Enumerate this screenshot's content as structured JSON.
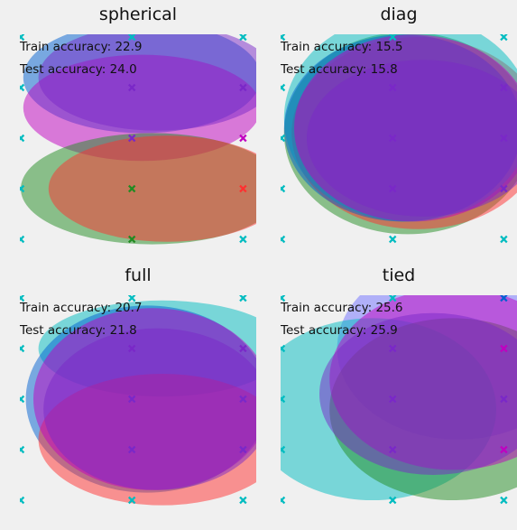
{
  "colors": {
    "background": "#f0f0f0",
    "c0": "#00bcc0",
    "c1": "#228b22",
    "c2": "#c000c0",
    "c3": "#7070ff",
    "c4": "#ff3030",
    "c5": "#0060d0",
    "c6": "#7a28c8"
  },
  "chart_data": [
    {
      "type": "scatter",
      "title": "spherical",
      "train_label": "Train accuracy: 22.9",
      "test_label": "Test accuracy: 24.0",
      "xlim": [
        0,
        4.7
      ],
      "ylim": [
        0,
        4.6
      ],
      "points": [
        {
          "x": 0,
          "y": 4.0,
          "c": "c0"
        },
        {
          "x": 2.2,
          "y": 4.0,
          "c": "c0"
        },
        {
          "x": 4.4,
          "y": 4.0,
          "c": "c0"
        },
        {
          "x": 0,
          "y": 3.0,
          "c": "c0"
        },
        {
          "x": 2.2,
          "y": 3.0,
          "c": "c6"
        },
        {
          "x": 4.4,
          "y": 3.0,
          "c": "c6"
        },
        {
          "x": 0,
          "y": 2.0,
          "c": "c0"
        },
        {
          "x": 2.2,
          "y": 2.0,
          "c": "c6"
        },
        {
          "x": 4.4,
          "y": 2.0,
          "c": "c2"
        },
        {
          "x": 0,
          "y": 1.0,
          "c": "c0"
        },
        {
          "x": 2.2,
          "y": 1.0,
          "c": "c1"
        },
        {
          "x": 4.4,
          "y": 1.0,
          "c": "c4"
        },
        {
          "x": 0,
          "y": 0.0,
          "c": "c0"
        },
        {
          "x": 2.2,
          "y": 0.0,
          "c": "c1"
        },
        {
          "x": 4.4,
          "y": 0.0,
          "c": "c0"
        }
      ],
      "ellipses": [
        {
          "cx": 2.4,
          "cy": 3.2,
          "rx": 2.35,
          "ry": 1.1,
          "color": "c5"
        },
        {
          "cx": 2.4,
          "cy": 2.6,
          "rx": 2.35,
          "ry": 1.05,
          "color": "c2"
        },
        {
          "cx": 2.7,
          "cy": 3.2,
          "rx": 2.35,
          "ry": 1.05,
          "color": "c6"
        },
        {
          "cx": 2.6,
          "cy": 1.0,
          "rx": 2.6,
          "ry": 1.1,
          "color": "c1"
        },
        {
          "cx": 2.9,
          "cy": 1.0,
          "rx": 2.35,
          "ry": 1.05,
          "color": "c4"
        }
      ]
    },
    {
      "type": "scatter",
      "title": "diag",
      "train_label": "Train accuracy: 15.5",
      "test_label": "Test accuracy: 15.8",
      "xlim": [
        0,
        4.7
      ],
      "ylim": [
        0,
        4.6
      ],
      "points": [
        {
          "x": 0,
          "y": 4.0,
          "c": "c0"
        },
        {
          "x": 2.2,
          "y": 4.0,
          "c": "c0"
        },
        {
          "x": 4.4,
          "y": 4.0,
          "c": "c0"
        },
        {
          "x": 0,
          "y": 3.0,
          "c": "c0"
        },
        {
          "x": 2.2,
          "y": 3.0,
          "c": "c6"
        },
        {
          "x": 4.4,
          "y": 3.0,
          "c": "c6"
        },
        {
          "x": 0,
          "y": 2.0,
          "c": "c0"
        },
        {
          "x": 2.2,
          "y": 2.0,
          "c": "c6"
        },
        {
          "x": 4.4,
          "y": 2.0,
          "c": "c6"
        },
        {
          "x": 0,
          "y": 1.0,
          "c": "c0"
        },
        {
          "x": 2.2,
          "y": 1.0,
          "c": "c6"
        },
        {
          "x": 4.4,
          "y": 1.0,
          "c": "c6"
        },
        {
          "x": 0,
          "y": 0.0,
          "c": "c0"
        },
        {
          "x": 2.2,
          "y": 0.0,
          "c": "c0"
        },
        {
          "x": 4.4,
          "y": 0.0,
          "c": "c0"
        }
      ],
      "ellipses": [
        {
          "cx": 2.5,
          "cy": 2.1,
          "rx": 2.45,
          "ry": 2.0,
          "color": "c1"
        },
        {
          "cx": 2.7,
          "cy": 2.1,
          "rx": 2.5,
          "ry": 1.9,
          "color": "c4"
        },
        {
          "cx": 2.5,
          "cy": 2.4,
          "rx": 2.45,
          "ry": 2.05,
          "color": "c0"
        },
        {
          "cx": 2.4,
          "cy": 2.2,
          "rx": 2.35,
          "ry": 1.85,
          "color": "c5"
        },
        {
          "cx": 2.6,
          "cy": 2.2,
          "rx": 2.35,
          "ry": 1.85,
          "color": "c2"
        },
        {
          "cx": 2.8,
          "cy": 2.0,
          "rx": 2.3,
          "ry": 1.55,
          "color": "c6"
        }
      ]
    },
    {
      "type": "scatter",
      "title": "full",
      "train_label": "Train accuracy: 20.7",
      "test_label": "Test accuracy: 21.8",
      "xlim": [
        0,
        4.7
      ],
      "ylim": [
        0,
        4.6
      ],
      "points": [
        {
          "x": 0,
          "y": 4.0,
          "c": "c0"
        },
        {
          "x": 2.2,
          "y": 4.0,
          "c": "c0"
        },
        {
          "x": 4.4,
          "y": 4.0,
          "c": "c0"
        },
        {
          "x": 0,
          "y": 3.0,
          "c": "c0"
        },
        {
          "x": 2.2,
          "y": 3.0,
          "c": "c6"
        },
        {
          "x": 4.4,
          "y": 3.0,
          "c": "c6"
        },
        {
          "x": 0,
          "y": 2.0,
          "c": "c0"
        },
        {
          "x": 2.2,
          "y": 2.0,
          "c": "c6"
        },
        {
          "x": 4.4,
          "y": 2.0,
          "c": "c6"
        },
        {
          "x": 0,
          "y": 1.0,
          "c": "c0"
        },
        {
          "x": 2.2,
          "y": 1.0,
          "c": "c6"
        },
        {
          "x": 4.4,
          "y": 1.0,
          "c": "c6"
        },
        {
          "x": 0,
          "y": 0.0,
          "c": "c0"
        },
        {
          "x": 2.2,
          "y": 0.0,
          "c": "c0"
        },
        {
          "x": 4.4,
          "y": 0.0,
          "c": "c0"
        }
      ],
      "ellipses": [
        {
          "cx": 2.8,
          "cy": 3.0,
          "rx": 2.45,
          "ry": 0.95,
          "color": "c0"
        },
        {
          "cx": 2.5,
          "cy": 2.0,
          "rx": 2.4,
          "ry": 1.85,
          "color": "c5"
        },
        {
          "cx": 2.8,
          "cy": 1.2,
          "rx": 2.45,
          "ry": 1.3,
          "color": "c4"
        },
        {
          "cx": 2.6,
          "cy": 2.0,
          "rx": 2.35,
          "ry": 1.8,
          "color": "c2"
        },
        {
          "cx": 2.7,
          "cy": 1.8,
          "rx": 2.25,
          "ry": 1.6,
          "color": "c6"
        }
      ]
    },
    {
      "type": "scatter",
      "title": "tied",
      "train_label": "Train accuracy: 25.6",
      "test_label": "Test accuracy: 25.9",
      "xlim": [
        0,
        4.7
      ],
      "ylim": [
        0,
        4.6
      ],
      "points": [
        {
          "x": 0,
          "y": 4.0,
          "c": "c0"
        },
        {
          "x": 2.2,
          "y": 4.0,
          "c": "c0"
        },
        {
          "x": 4.4,
          "y": 4.0,
          "c": "c5"
        },
        {
          "x": 0,
          "y": 3.0,
          "c": "c0"
        },
        {
          "x": 2.2,
          "y": 3.0,
          "c": "c6"
        },
        {
          "x": 4.4,
          "y": 3.0,
          "c": "c2"
        },
        {
          "x": 0,
          "y": 2.0,
          "c": "c0"
        },
        {
          "x": 2.2,
          "y": 2.0,
          "c": "c6"
        },
        {
          "x": 4.4,
          "y": 2.0,
          "c": "c6"
        },
        {
          "x": 0,
          "y": 1.0,
          "c": "c0"
        },
        {
          "x": 2.2,
          "y": 1.0,
          "c": "c6"
        },
        {
          "x": 4.4,
          "y": 1.0,
          "c": "c2"
        },
        {
          "x": 0,
          "y": 0.0,
          "c": "c0"
        },
        {
          "x": 2.2,
          "y": 0.0,
          "c": "c0"
        },
        {
          "x": 4.4,
          "y": 0.0,
          "c": "c0"
        }
      ],
      "ellipses": [
        {
          "cx": 3.5,
          "cy": 3.0,
          "rx": 2.4,
          "ry": 1.8,
          "color": "c3"
        },
        {
          "cx": 1.8,
          "cy": 1.8,
          "rx": 2.45,
          "ry": 1.8,
          "color": "c0"
        },
        {
          "cx": 3.4,
          "cy": 1.8,
          "rx": 2.45,
          "ry": 1.8,
          "color": "c1"
        },
        {
          "cx": 3.4,
          "cy": 2.4,
          "rx": 2.45,
          "ry": 1.8,
          "color": "c2"
        },
        {
          "cx": 3.0,
          "cy": 2.1,
          "rx": 2.25,
          "ry": 1.6,
          "color": "c6"
        }
      ]
    }
  ]
}
